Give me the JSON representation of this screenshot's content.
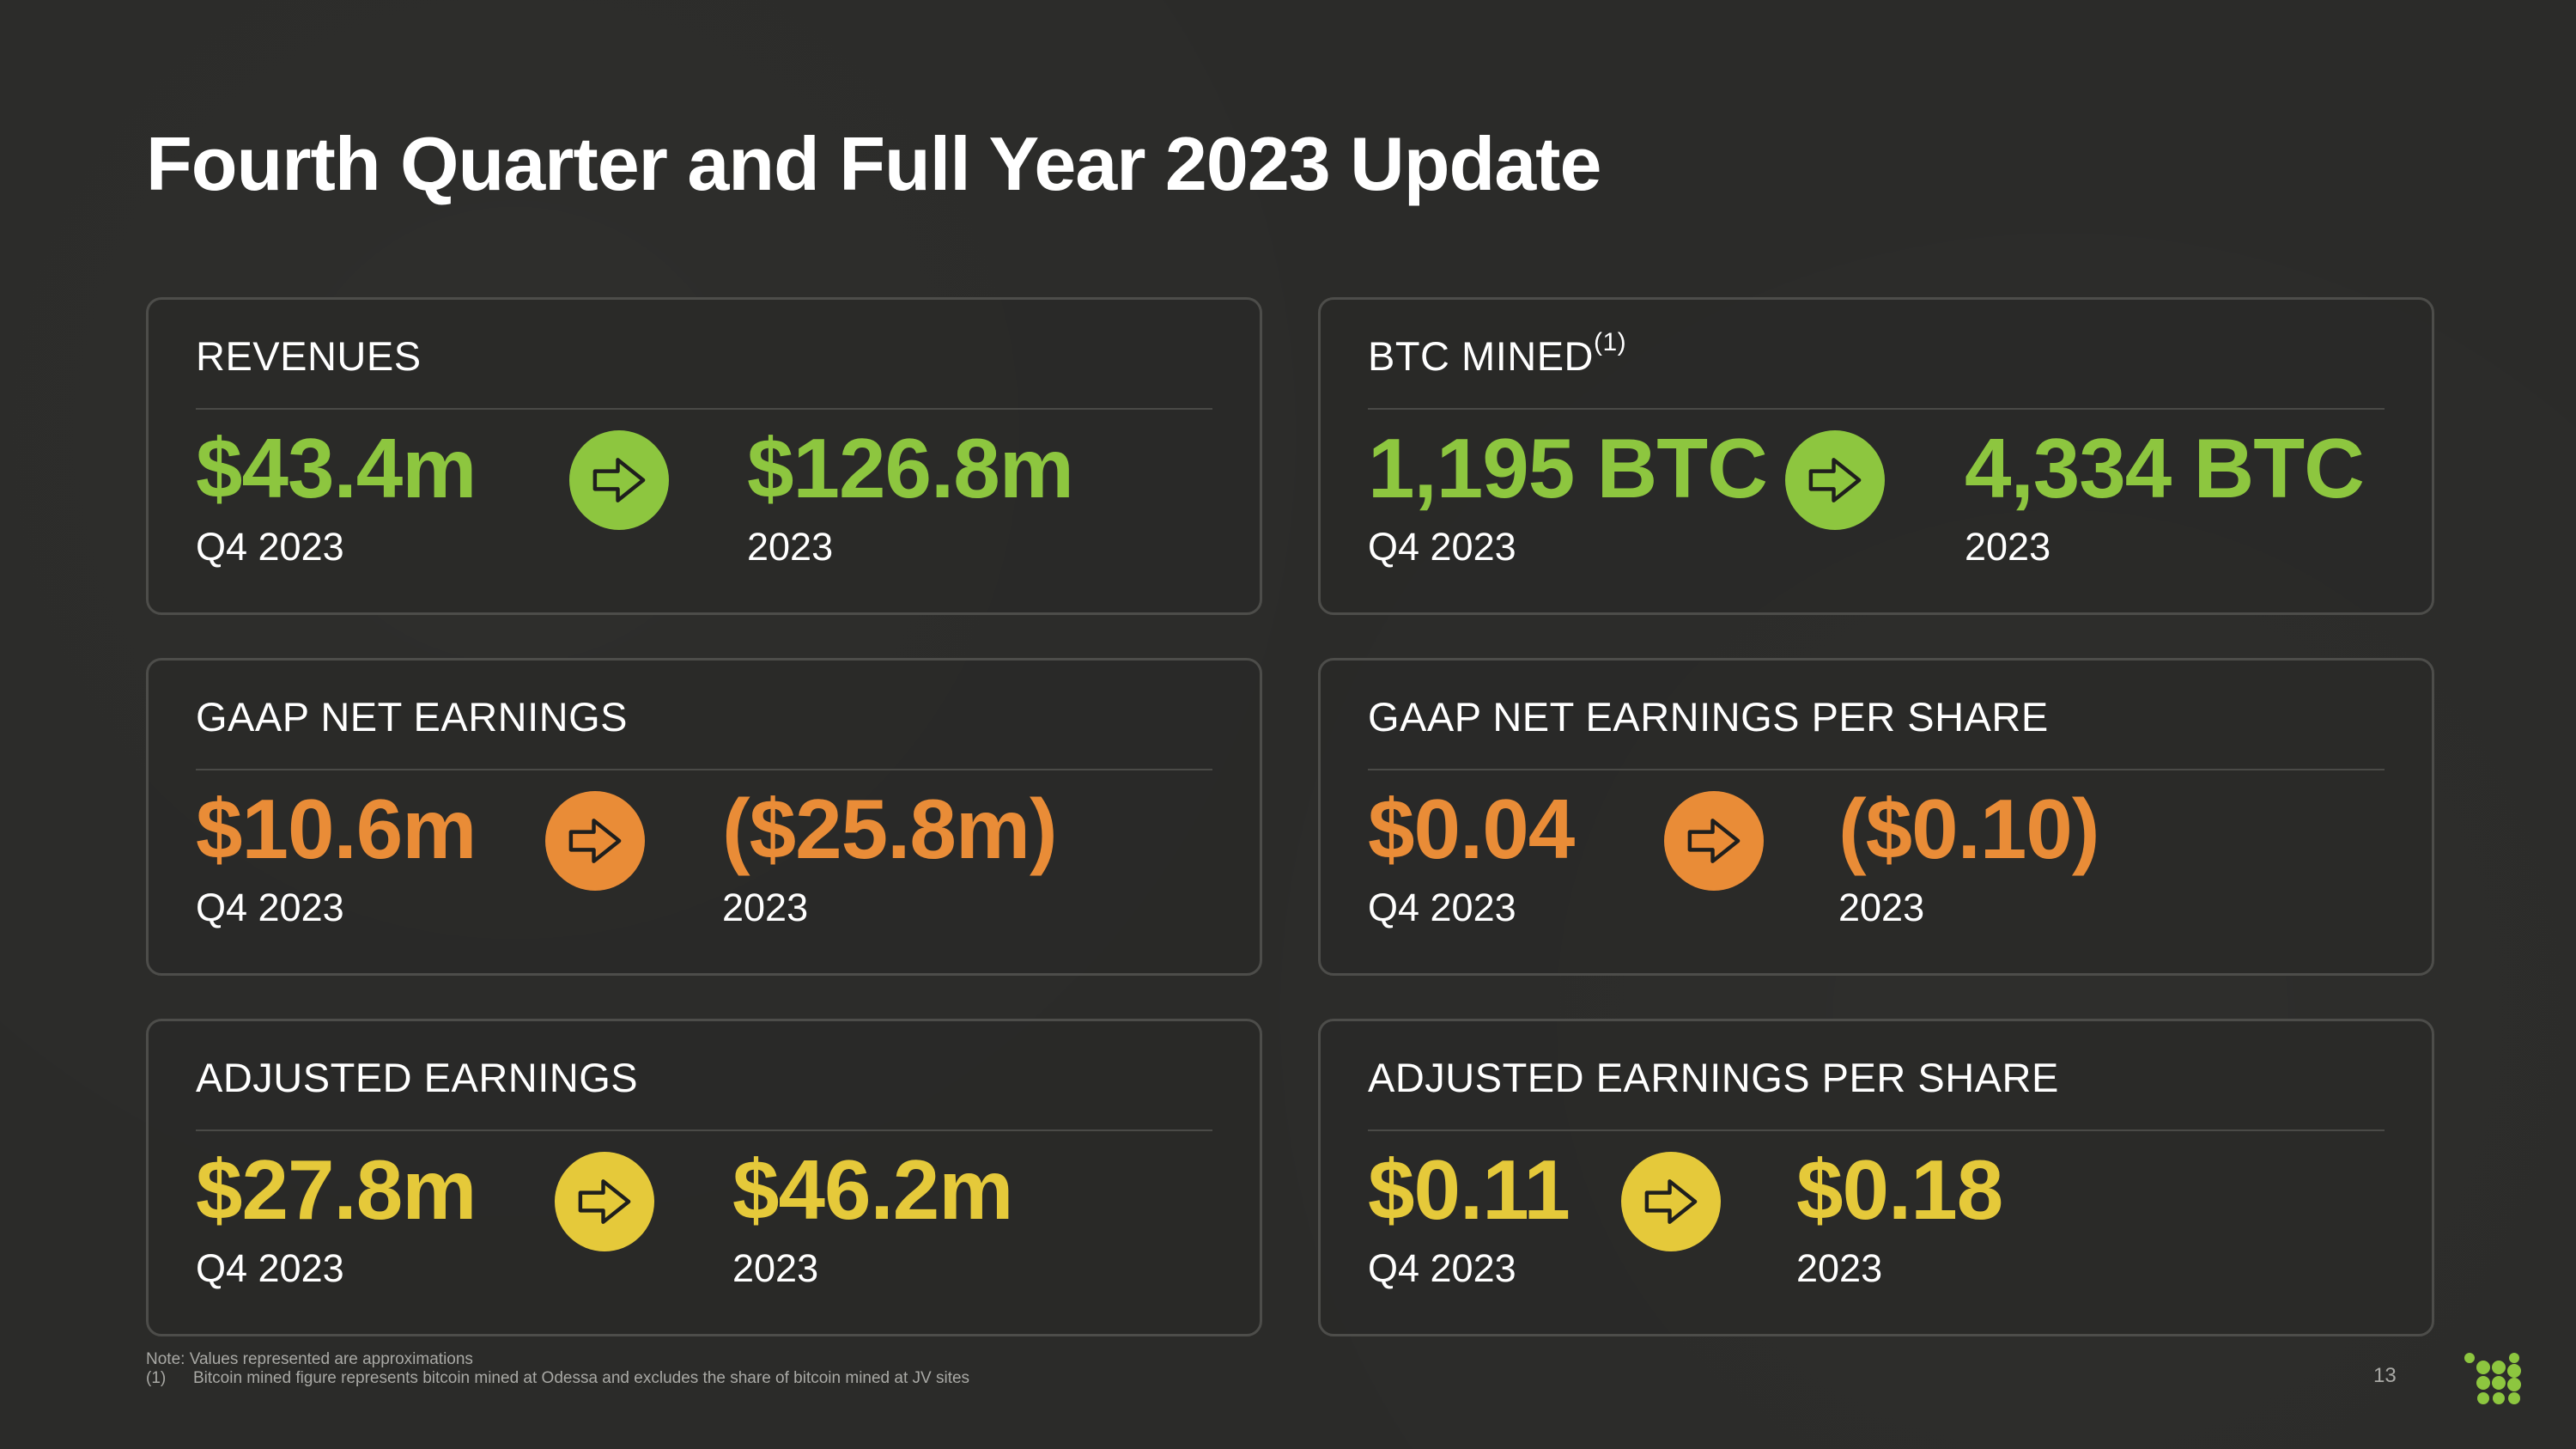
{
  "slide": {
    "title": "Fourth Quarter and Full Year 2023 Update",
    "page_number": "13"
  },
  "colors": {
    "green": "#8dc63f",
    "orange": "#e98c37",
    "yellow": "#e5c93a",
    "background": "#2b2b29"
  },
  "cards": {
    "revenues": {
      "label": "REVENUES",
      "q4_value": "$43.4m",
      "q4_period": "Q4 2023",
      "fy_value": "$126.8m",
      "fy_period": "2023",
      "icon": "arrow-right-icon"
    },
    "btc_mined": {
      "label": "BTC MINED",
      "label_note": "(1)",
      "q4_value": "1,195 BTC",
      "q4_period": "Q4 2023",
      "fy_value": "4,334 BTC",
      "fy_period": "2023",
      "icon": "arrow-right-icon"
    },
    "gaap_net_earnings": {
      "label": "GAAP NET EARNINGS",
      "q4_value": "$10.6m",
      "q4_period": "Q4 2023",
      "fy_value": "($25.8m)",
      "fy_period": "2023",
      "icon": "arrow-right-icon"
    },
    "gaap_eps": {
      "label": "GAAP NET EARNINGS PER SHARE",
      "q4_value": "$0.04",
      "q4_period": "Q4 2023",
      "fy_value": "($0.10)",
      "fy_period": "2023",
      "icon": "arrow-right-icon"
    },
    "adjusted_earnings": {
      "label": "ADJUSTED EARNINGS",
      "q4_value": "$27.8m",
      "q4_period": "Q4 2023",
      "fy_value": "$46.2m",
      "fy_period": "2023",
      "icon": "arrow-right-icon"
    },
    "adjusted_eps": {
      "label": "ADJUSTED EARNINGS PER SHARE",
      "q4_value": "$0.11",
      "q4_period": "Q4 2023",
      "fy_value": "$0.18",
      "fy_period": "2023",
      "icon": "arrow-right-icon"
    }
  },
  "footnotes": {
    "note": "Note: Values represented are approximations",
    "ref_marker": "(1)",
    "ref_text": "Bitcoin mined figure represents bitcoin mined at Odessa and excludes the share of bitcoin mined at JV sites"
  }
}
